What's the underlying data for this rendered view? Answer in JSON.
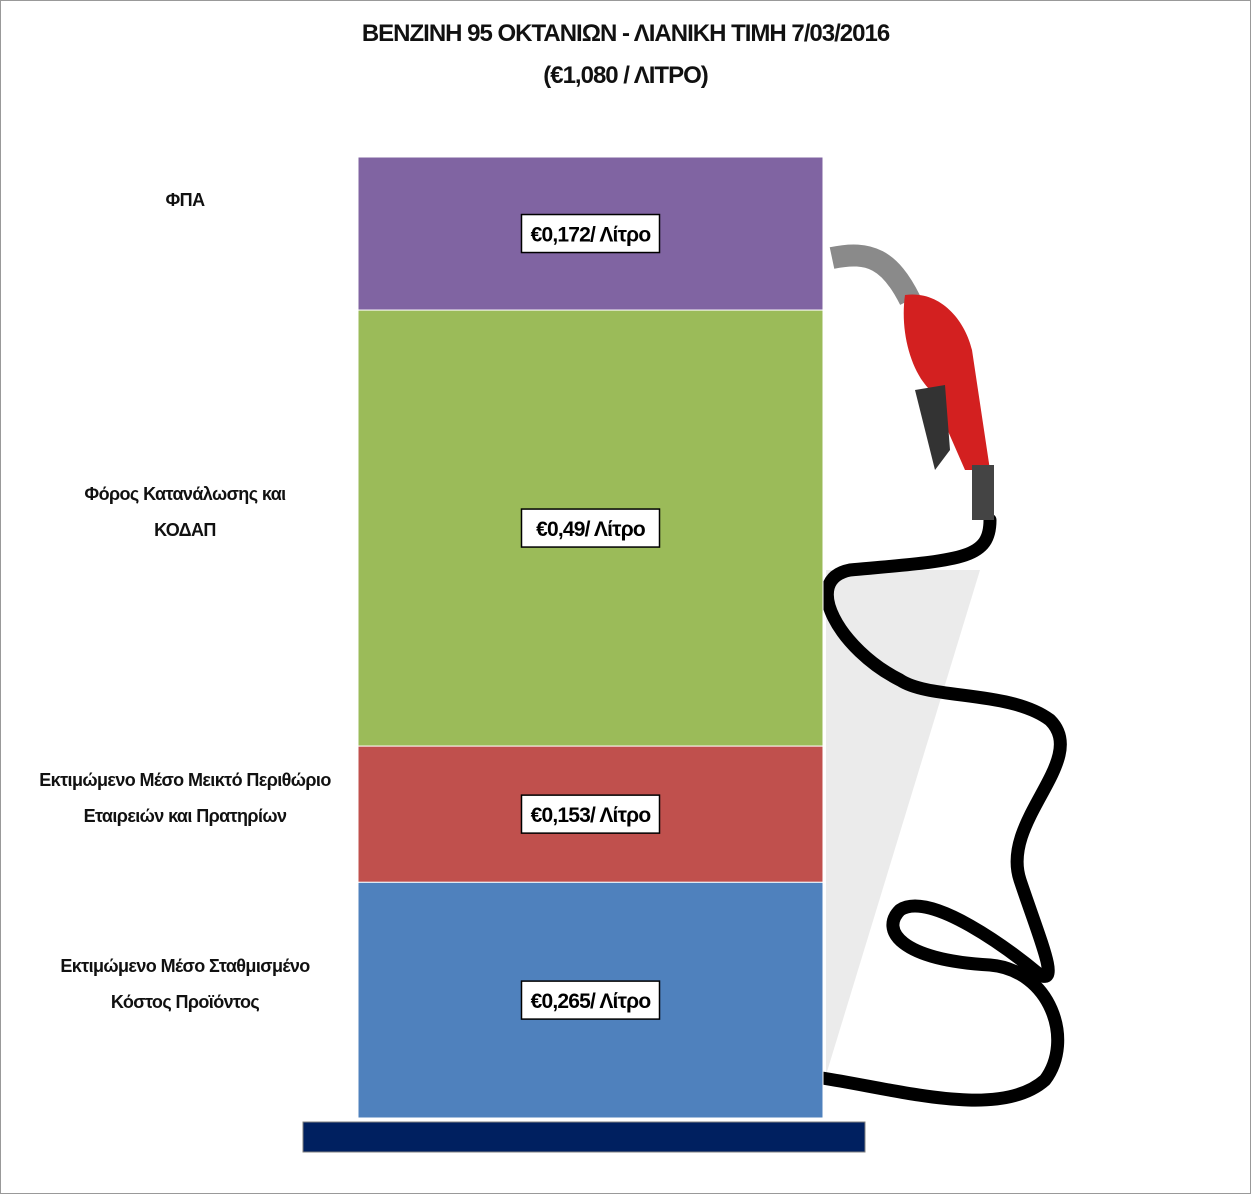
{
  "chart_data": {
    "type": "bar",
    "stacked": true,
    "title": "ΒΕΝΖΙΝΗ 95 ΟΚΤΑΝΙΩΝ - ΛΙΑΝΙΚΗ ΤΙΜΗ 7/03/2016",
    "subtitle": "(€1,080 / ΛΙΤΡΟ)",
    "series": [
      {
        "name": "Εκτιμώμενο Μέσο Σταθμισμένο Κόστος Προϊόντος",
        "color": "#4f81bd",
        "values": [
          0.265
        ],
        "value_labels": [
          "€0,265/ Λίτρο"
        ]
      },
      {
        "name": "Εκτιμώμενο Μέσο Μεικτό Περιθώριο Εταιρειών και Πρατηρίων",
        "color": "#c0504d",
        "values": [
          0.153
        ],
        "value_labels": [
          "€0,153/ Λίτρο"
        ]
      },
      {
        "name": "Φόρος Κατανάλωσης και ΚΟΔΑΠ",
        "color": "#9bbb59",
        "values": [
          0.49
        ],
        "value_labels": [
          "€0,49/ Λίτρο"
        ]
      },
      {
        "name": "ΦΠΑ",
        "color": "#8064a2",
        "values": [
          0.172
        ],
        "value_labels": [
          "€0,172/ Λίτρο"
        ]
      }
    ]
  }
}
